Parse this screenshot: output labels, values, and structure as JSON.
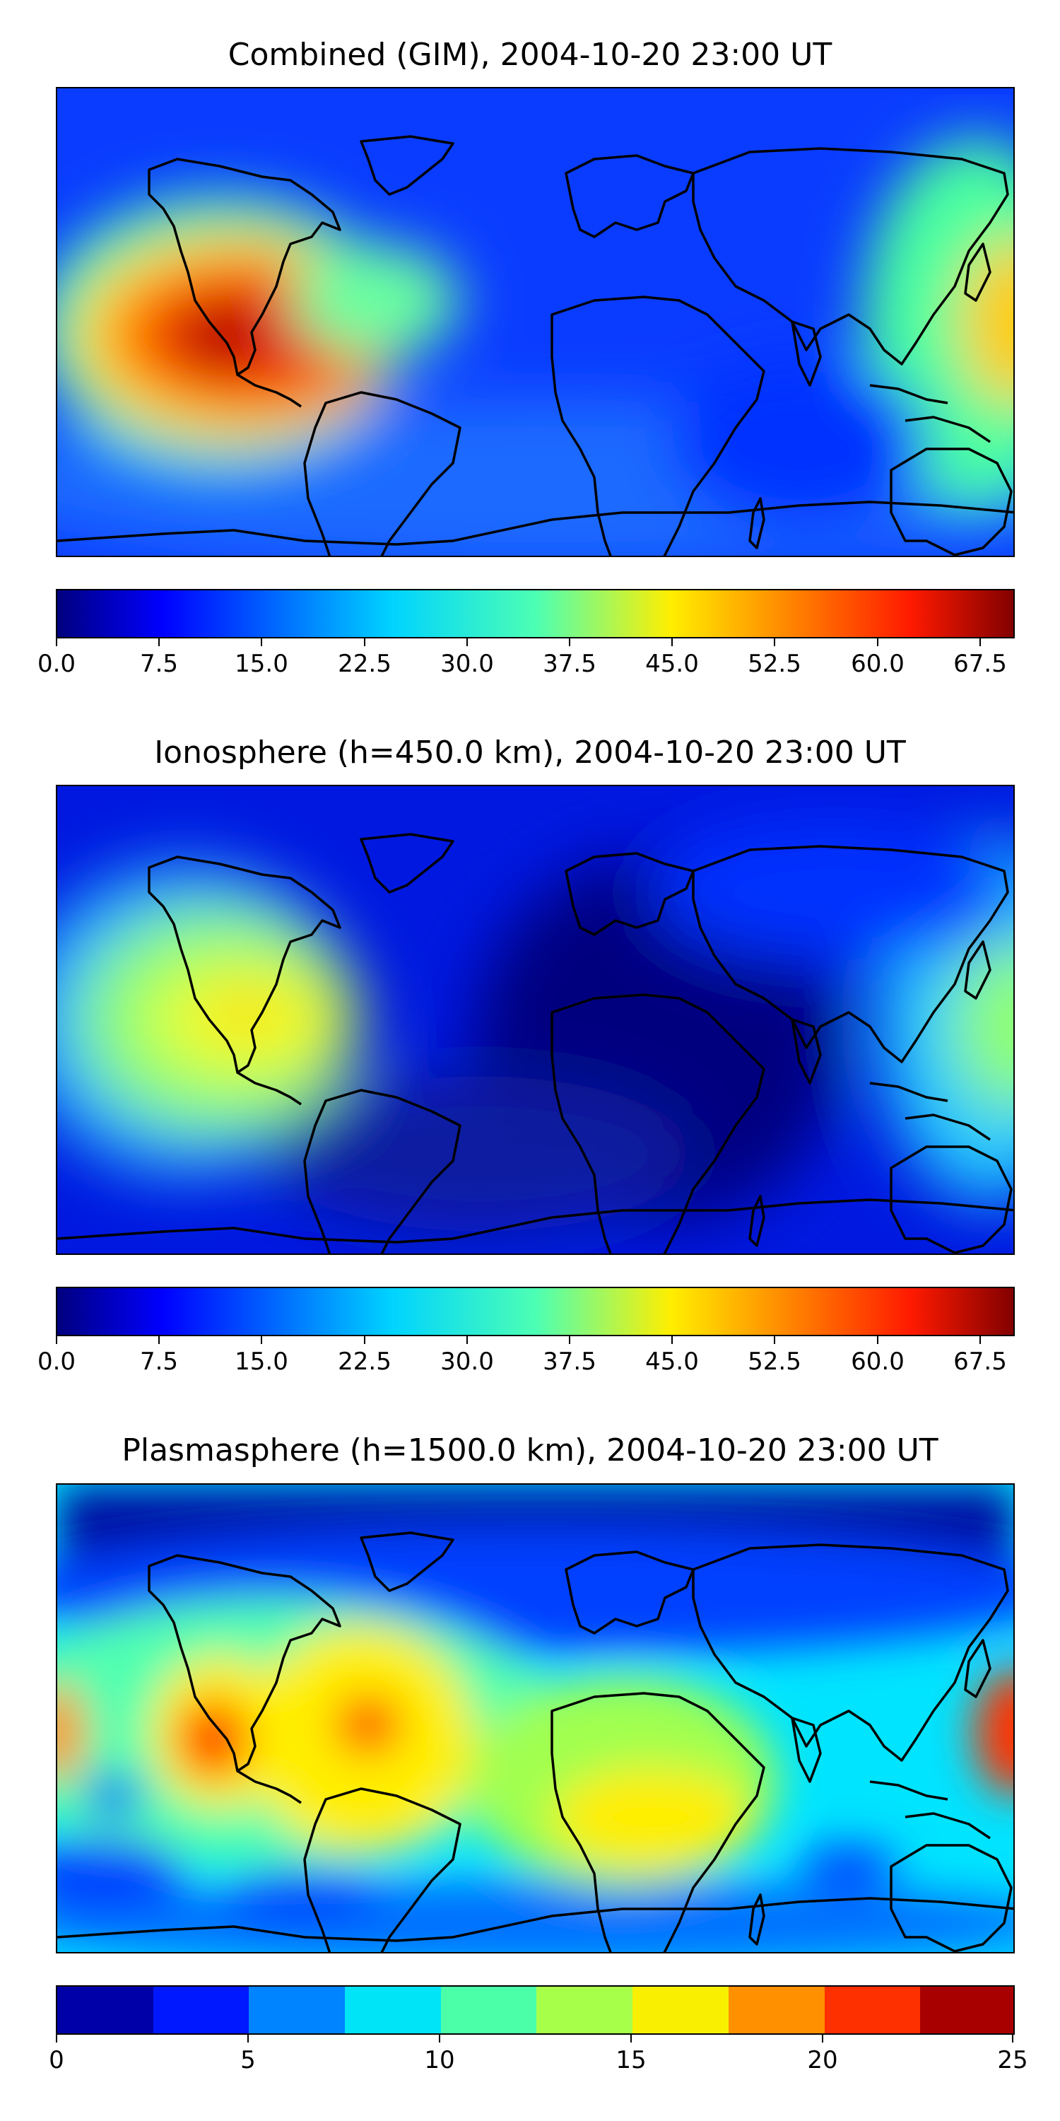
{
  "panels": [
    {
      "title": "Combined (GIM), 2004-10-20 23:00 UT",
      "colorbar": {
        "min": 0.0,
        "max": 70.0,
        "levels": 28,
        "tick_labels": [
          "0.0",
          "7.5",
          "15.0",
          "22.5",
          "30.0",
          "37.5",
          "45.0",
          "52.5",
          "60.0",
          "67.5"
        ],
        "tick_values": [
          0,
          7.5,
          15,
          22.5,
          30,
          37.5,
          45,
          52.5,
          60,
          67.5
        ]
      }
    },
    {
      "title": "Ionosphere  (h=450.0 km), 2004-10-20 23:00 UT",
      "colorbar": {
        "min": 0.0,
        "max": 70.0,
        "levels": 28,
        "tick_labels": [
          "0.0",
          "7.5",
          "15.0",
          "22.5",
          "30.0",
          "37.5",
          "45.0",
          "52.5",
          "60.0",
          "67.5"
        ],
        "tick_values": [
          0,
          7.5,
          15,
          22.5,
          30,
          37.5,
          45,
          52.5,
          60,
          67.5
        ]
      }
    },
    {
      "title": "Plasmasphere (h=1500.0 km), 2004-10-20 23:00 UT",
      "colorbar": {
        "min": 0,
        "max": 25,
        "levels": 10,
        "tick_labels": [
          "0",
          "5",
          "10",
          "15",
          "20",
          "25"
        ],
        "tick_values": [
          0,
          5,
          10,
          15,
          20,
          25
        ]
      }
    }
  ],
  "colormap": "jet",
  "coastline_color": "#000000"
}
